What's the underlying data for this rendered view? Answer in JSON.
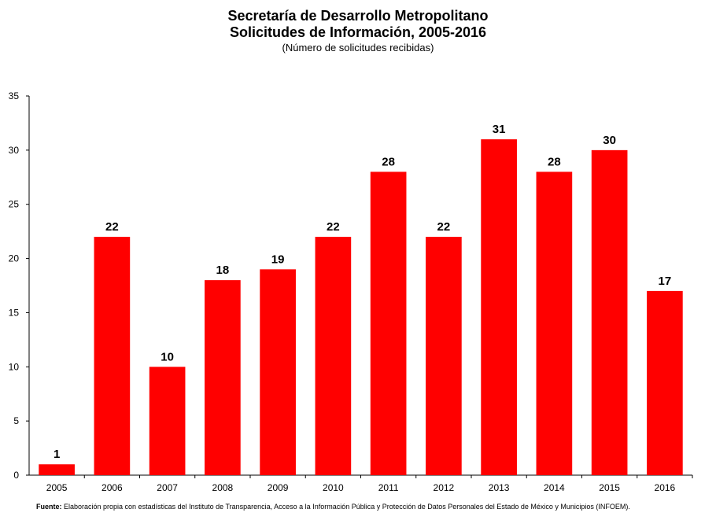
{
  "chart_data": {
    "type": "bar",
    "title": "Secretaría de Desarrollo Metropolitano",
    "subtitle_line": "Solicitudes de Información, 2005-2016",
    "subtitle": "(Número de solicitudes recibidas)",
    "categories": [
      "2005",
      "2006",
      "2007",
      "2008",
      "2009",
      "2010",
      "2011",
      "2012",
      "2013",
      "2014",
      "2015",
      "2016"
    ],
    "values": [
      1,
      22,
      10,
      18,
      19,
      22,
      28,
      22,
      31,
      28,
      30,
      17
    ],
    "ylim": [
      0,
      35
    ],
    "yticks": [
      0,
      5,
      10,
      15,
      20,
      25,
      30,
      35
    ],
    "bar_color": "#ff0000",
    "grid": false,
    "data_labels": true
  },
  "source": {
    "label": "Fuente:",
    "text": " Elaboración  propia  con estadísticas del Instituto de Transparencia, Acceso a la Información Pública y Protección de Datos Personales del Estado de México y Municipios (INFOEM)."
  }
}
